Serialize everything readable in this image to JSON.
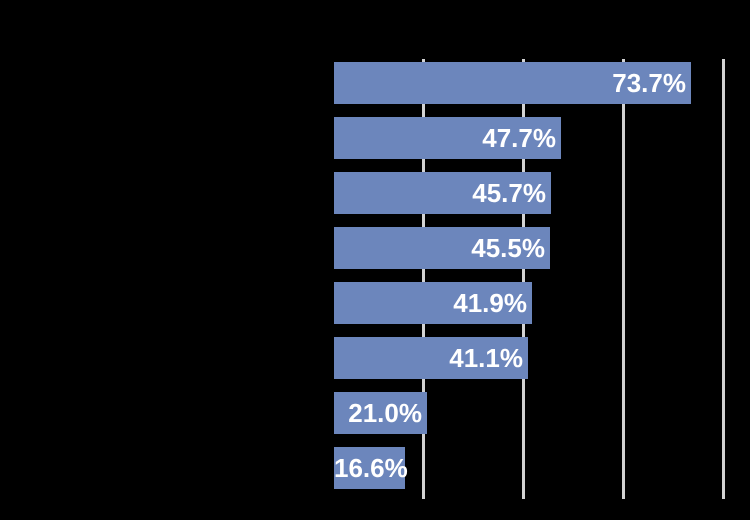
{
  "chart_data": {
    "type": "bar",
    "orientation": "horizontal",
    "bars": [
      {
        "value": 73.7,
        "label": "73.7%"
      },
      {
        "value": 47.7,
        "label": "47.7%"
      },
      {
        "value": 45.7,
        "label": "45.7%"
      },
      {
        "value": 45.5,
        "label": "45.5%"
      },
      {
        "value": 41.9,
        "label": "41.9%"
      },
      {
        "value": 41.1,
        "label": "41.1%"
      },
      {
        "value": 21.0,
        "label": "21.0%"
      },
      {
        "value": 16.6,
        "label": "16.6%"
      }
    ],
    "value_axis": {
      "min": 0,
      "gridlines": [
        20,
        40,
        60,
        80
      ],
      "gridline_interval": 20,
      "tick_labels_visible": false
    },
    "category_labels_visible": false,
    "legend": "none",
    "grid": "vertical",
    "data_label_position": "inside-end",
    "colors": {
      "bar_fill": "#6C86BC",
      "data_label": "#FFFFFF",
      "gridline": "#D3D3D3",
      "background": "#000000"
    }
  }
}
